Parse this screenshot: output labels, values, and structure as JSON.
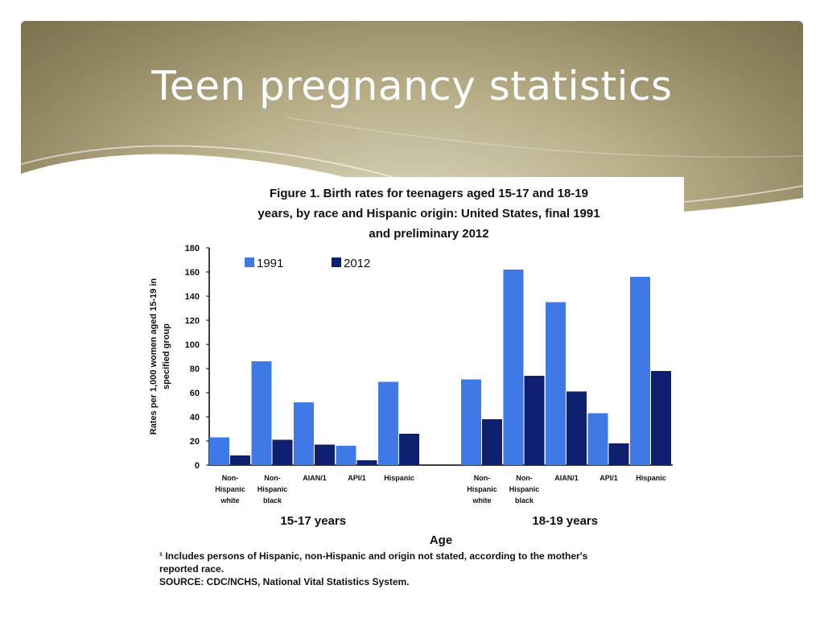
{
  "slide": {
    "title": "Teen pregnancy statistics"
  },
  "colors": {
    "header_dark": "#7a7150",
    "header_light": "#ddd8c2",
    "series_1991": "#3e79e6",
    "series_2012": "#0e1f6e"
  },
  "chart_data": {
    "type": "bar",
    "title_lines": [
      "Figure 1. Birth rates for teenagers aged 15-17 and 18-19",
      "years, by race and Hispanic origin:  United States, final 1991",
      "and preliminary 2012"
    ],
    "ylabel_lines": [
      "Rates per 1,000 women aged 15-19 in",
      "specified group"
    ],
    "xlabel": "Age",
    "ylim": [
      0,
      180
    ],
    "yticks": [
      0,
      20,
      40,
      60,
      80,
      100,
      120,
      140,
      160,
      180
    ],
    "legend": [
      "1991",
      "2012"
    ],
    "legend_position": "top-left",
    "series": [
      {
        "name": "1991",
        "color": "#3e79e6"
      },
      {
        "name": "2012",
        "color": "#0e1f6e"
      }
    ],
    "groups": [
      {
        "label": "15-17 years",
        "categories": [
          {
            "label": [
              "Non-",
              "Hispanic",
              "white"
            ],
            "values": [
              23,
              8
            ]
          },
          {
            "label": [
              "Non-",
              "Hispanic",
              "black"
            ],
            "values": [
              86,
              21
            ]
          },
          {
            "label": [
              "AIAN/1"
            ],
            "values": [
              52,
              17
            ]
          },
          {
            "label": [
              "API/1"
            ],
            "values": [
              16,
              4
            ]
          },
          {
            "label": [
              "Hispanic"
            ],
            "values": [
              69,
              26
            ]
          }
        ]
      },
      {
        "label": "18-19 years",
        "categories": [
          {
            "label": [
              "Non-",
              "Hispanic",
              "white"
            ],
            "values": [
              71,
              38
            ]
          },
          {
            "label": [
              "Non-",
              "Hispanic",
              "black"
            ],
            "values": [
              162,
              74
            ]
          },
          {
            "label": [
              "AIAN/1"
            ],
            "values": [
              135,
              61
            ]
          },
          {
            "label": [
              "API/1"
            ],
            "values": [
              43,
              18
            ]
          },
          {
            "label": [
              "Hispanic"
            ],
            "values": [
              156,
              78
            ]
          }
        ]
      }
    ],
    "footnotes": [
      "¹ Includes persons of Hispanic, non-Hispanic and origin not stated, according to the mother's",
      "reported race.",
      "SOURCE: CDC/NCHS, National Vital Statistics System."
    ]
  }
}
